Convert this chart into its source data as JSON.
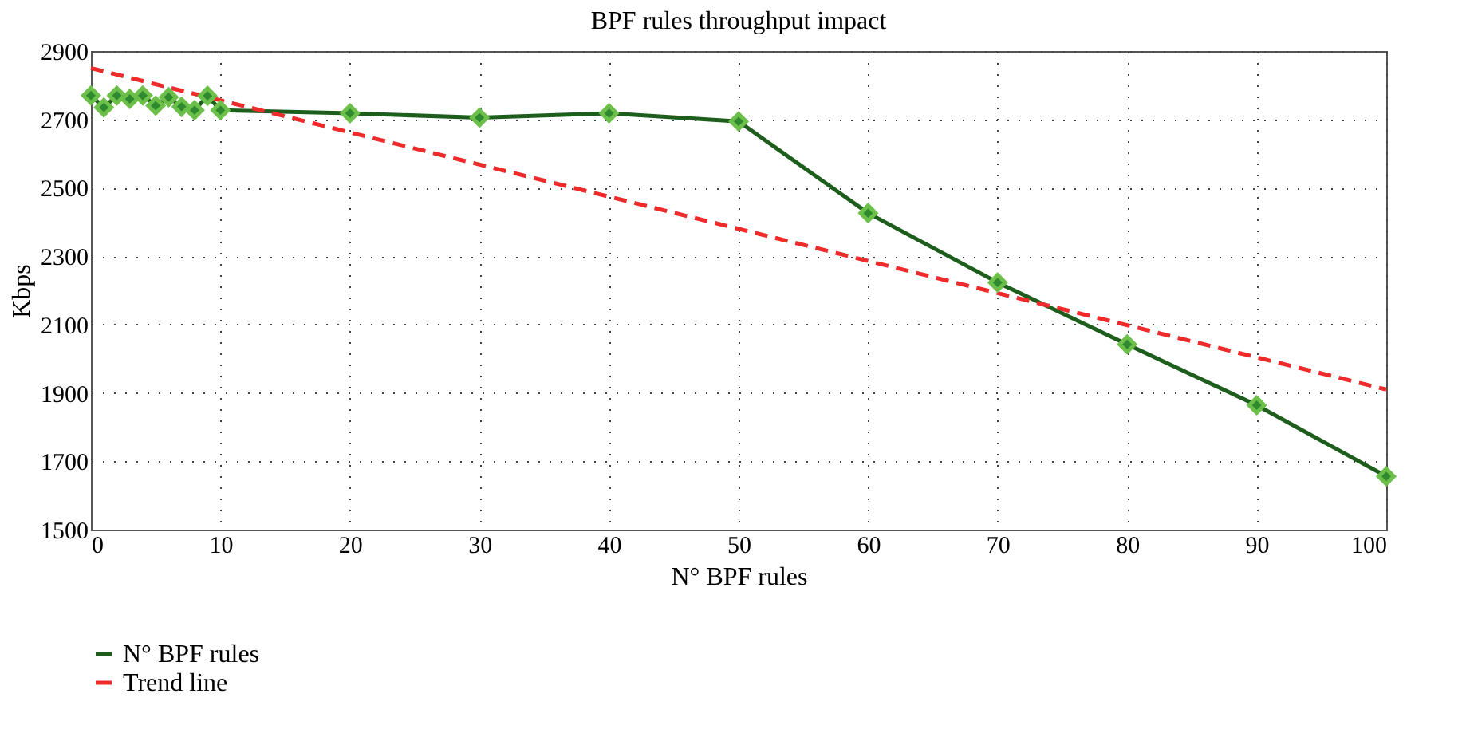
{
  "chart_data": {
    "type": "line",
    "title": "BPF rules throughput impact",
    "xlabel": "N° BPF rules",
    "ylabel": "Kbps",
    "x": [
      0,
      1,
      2,
      3,
      4,
      5,
      6,
      7,
      8,
      9,
      10,
      20,
      30,
      40,
      50,
      60,
      70,
      80,
      90,
      100
    ],
    "series": [
      {
        "name": "N° BPF rules",
        "color": "#1d5e1d",
        "marker": "diamond",
        "line_style": "solid",
        "values": [
          2770,
          2735,
          2770,
          2760,
          2770,
          2740,
          2765,
          2737,
          2727,
          2769,
          2727,
          2718,
          2705,
          2718,
          2694,
          2426,
          2223,
          2042,
          1864,
          1656
        ]
      },
      {
        "name": "Trend line",
        "color": "#ee2a2a",
        "marker": "none",
        "line_style": "dashed",
        "x": [
          0,
          100
        ],
        "values": [
          2850,
          1910
        ]
      }
    ],
    "xlim": [
      0,
      100
    ],
    "xticks": [
      0,
      10,
      20,
      30,
      40,
      50,
      60,
      70,
      80,
      90,
      100
    ],
    "ylim": [
      1500,
      2900
    ],
    "yticks": [
      1500,
      1700,
      1900,
      2100,
      2300,
      2500,
      2700,
      2900
    ],
    "grid": true,
    "legend": "bottom left"
  }
}
